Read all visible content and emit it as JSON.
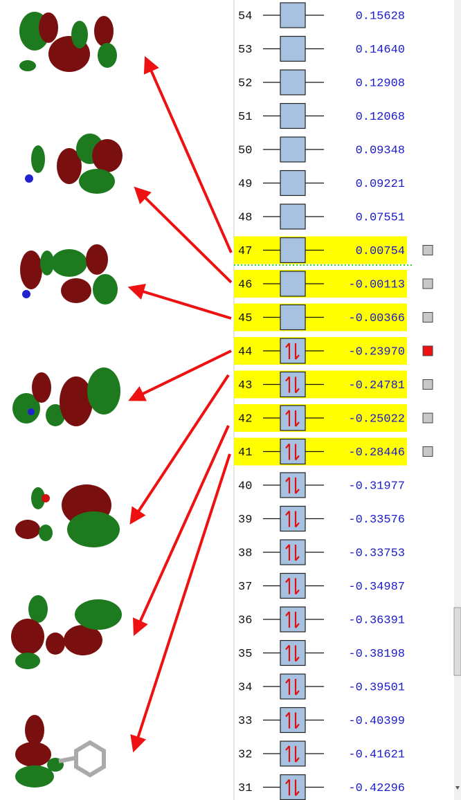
{
  "orbitals": [
    {
      "number": "54",
      "energy": "0.15628",
      "occupied": false,
      "highlighted": false,
      "selected": false
    },
    {
      "number": "53",
      "energy": "0.14640",
      "occupied": false,
      "highlighted": false,
      "selected": false
    },
    {
      "number": "52",
      "energy": "0.12908",
      "occupied": false,
      "highlighted": false,
      "selected": false
    },
    {
      "number": "51",
      "energy": "0.12068",
      "occupied": false,
      "highlighted": false,
      "selected": false
    },
    {
      "number": "50",
      "energy": "0.09348",
      "occupied": false,
      "highlighted": false,
      "selected": false
    },
    {
      "number": "49",
      "energy": "0.09221",
      "occupied": false,
      "highlighted": false,
      "selected": false
    },
    {
      "number": "48",
      "energy": "0.07551",
      "occupied": false,
      "highlighted": false,
      "selected": false
    },
    {
      "number": "47",
      "energy": "0.00754",
      "occupied": false,
      "highlighted": true,
      "selected": false
    },
    {
      "number": "46",
      "energy": "-0.00113",
      "occupied": false,
      "highlighted": true,
      "selected": false
    },
    {
      "number": "45",
      "energy": "-0.00366",
      "occupied": false,
      "highlighted": true,
      "selected": false
    },
    {
      "number": "44",
      "energy": "-0.23970",
      "occupied": true,
      "highlighted": true,
      "selected": true
    },
    {
      "number": "43",
      "energy": "-0.24781",
      "occupied": true,
      "highlighted": true,
      "selected": false
    },
    {
      "number": "42",
      "energy": "-0.25022",
      "occupied": true,
      "highlighted": true,
      "selected": false
    },
    {
      "number": "41",
      "energy": "-0.28446",
      "occupied": true,
      "highlighted": true,
      "selected": false
    },
    {
      "number": "40",
      "energy": "-0.31977",
      "occupied": true,
      "highlighted": false,
      "selected": false
    },
    {
      "number": "39",
      "energy": "-0.33576",
      "occupied": true,
      "highlighted": false,
      "selected": false
    },
    {
      "number": "38",
      "energy": "-0.33753",
      "occupied": true,
      "highlighted": false,
      "selected": false
    },
    {
      "number": "37",
      "energy": "-0.34987",
      "occupied": true,
      "highlighted": false,
      "selected": false
    },
    {
      "number": "36",
      "energy": "-0.36391",
      "occupied": true,
      "highlighted": false,
      "selected": false
    },
    {
      "number": "35",
      "energy": "-0.38198",
      "occupied": true,
      "highlighted": false,
      "selected": false
    },
    {
      "number": "34",
      "energy": "-0.39501",
      "occupied": true,
      "highlighted": false,
      "selected": false
    },
    {
      "number": "33",
      "energy": "-0.40399",
      "occupied": true,
      "highlighted": false,
      "selected": false
    },
    {
      "number": "32",
      "energy": "-0.41621",
      "occupied": true,
      "highlighted": false,
      "selected": false
    },
    {
      "number": "31",
      "energy": "-0.42296",
      "occupied": true,
      "highlighted": false,
      "selected": false
    }
  ]
}
